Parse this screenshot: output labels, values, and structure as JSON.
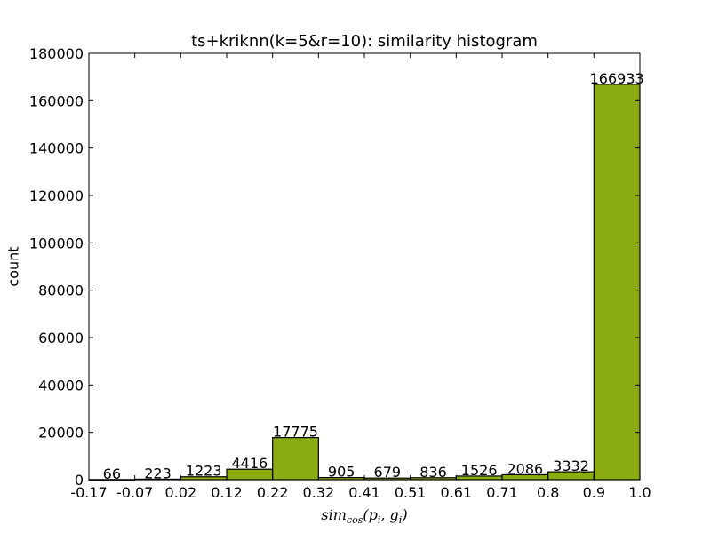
{
  "chart_data": {
    "type": "bar",
    "title": "ts+kriknn(k=5&r=10): similarity histogram",
    "xlabel": "sim_cos(p_i, g_i)",
    "ylabel": "count",
    "bin_edges": [
      -0.17,
      -0.07,
      0.02,
      0.12,
      0.22,
      0.32,
      0.41,
      0.51,
      0.61,
      0.71,
      0.8,
      0.9,
      1.0
    ],
    "x_tick_labels": [
      "-0.17",
      "-0.07",
      "0.02",
      "0.12",
      "0.22",
      "0.32",
      "0.41",
      "0.51",
      "0.61",
      "0.71",
      "0.8",
      "0.9",
      "1.0"
    ],
    "values": [
      66,
      223,
      1223,
      4416,
      17775,
      905,
      679,
      836,
      1526,
      2086,
      3332,
      166933
    ],
    "data_labels": [
      "66",
      "223",
      "1223",
      "4416",
      "17775",
      "905",
      "679",
      "836",
      "1526",
      "2086",
      "3332",
      "166933"
    ],
    "ylim": [
      0,
      180000
    ],
    "y_ticks": [
      0,
      20000,
      40000,
      60000,
      80000,
      100000,
      120000,
      140000,
      160000,
      180000
    ],
    "bar_color": "#8bab12",
    "edge_color": "#000000",
    "grid": false
  }
}
